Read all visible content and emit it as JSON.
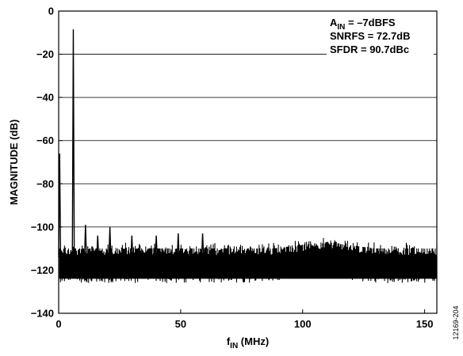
{
  "chart_data": {
    "type": "line",
    "title": "",
    "xlabel": {
      "main": "f",
      "sub": "IN",
      "rest": " (MHz)"
    },
    "ylabel": "MAGNITUDE (dB)",
    "xlim": [
      0,
      155
    ],
    "ylim": [
      -140,
      0
    ],
    "x_ticks": [
      0,
      50,
      100,
      150
    ],
    "y_ticks": [
      0,
      -20,
      -40,
      -60,
      -80,
      -100,
      -120,
      -140
    ],
    "x_tick_labels": [
      "0",
      "50",
      "100",
      "150"
    ],
    "y_tick_labels": [
      "0",
      "−20",
      "−40",
      "−60",
      "−80",
      "−100",
      "−120",
      "−140"
    ],
    "grid": "horizontal",
    "series": [
      {
        "noise_floor_db": -116,
        "noise_floor_band_db": [
          -124,
          -110
        ],
        "floor_hump": {
          "x_range": [
            88,
            130
          ],
          "delta_db": 3
        },
        "spikes": [
          {
            "x": 0.4,
            "y": -66
          },
          {
            "x": 6,
            "y": -8.5
          },
          {
            "x": 11,
            "y": -99
          },
          {
            "x": 16,
            "y": -104
          },
          {
            "x": 21,
            "y": -100
          },
          {
            "x": 30,
            "y": -104
          },
          {
            "x": 40,
            "y": -104
          },
          {
            "x": 49,
            "y": -103
          },
          {
            "x": 59,
            "y": -103
          }
        ]
      }
    ],
    "annotations": {
      "line1": {
        "main": "A",
        "sub": "IN",
        "rest": " = –7dBFS"
      },
      "line2": "SNRFS = 72.7dB",
      "line3": "SFDR = 90.7dBc"
    },
    "legend": "top-right"
  },
  "figure_id": "12169-204",
  "colors": {
    "trace": "#000000",
    "grid": "#000000",
    "frame": "#000000",
    "background": "#ffffff"
  }
}
